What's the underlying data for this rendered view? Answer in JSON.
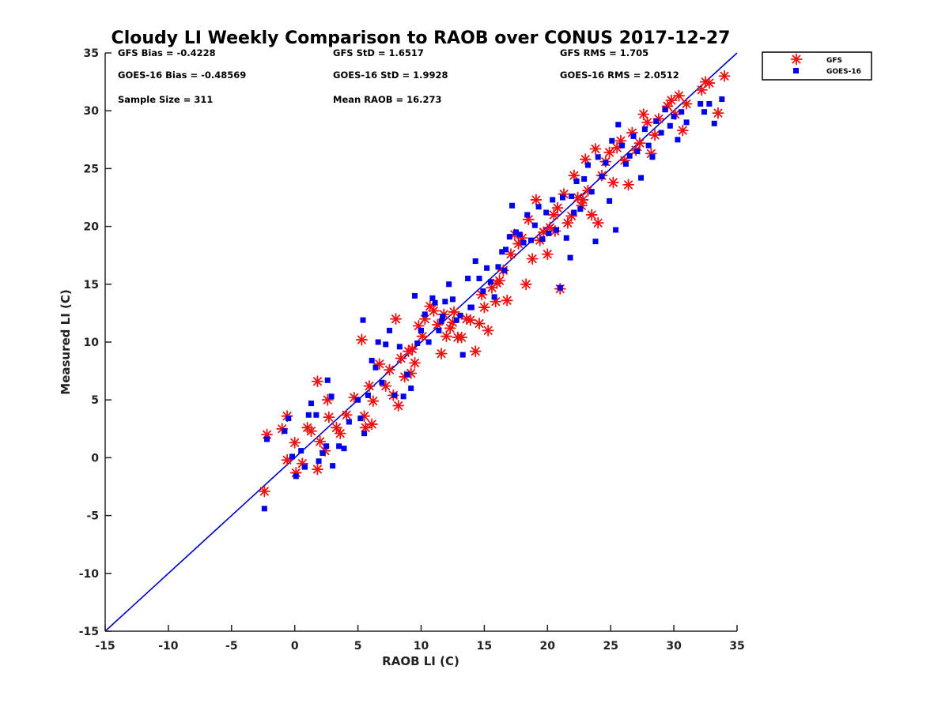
{
  "chart_data": {
    "type": "scatter",
    "title": "Cloudy LI Weekly Comparison to RAOB over CONUS 2017-12-27",
    "xlabel": "RAOB LI (C)",
    "ylabel": "Measured LI (C)",
    "xlim": [
      -15,
      35
    ],
    "ylim": [
      -15,
      35
    ],
    "xticks": [
      -15,
      -10,
      -5,
      0,
      5,
      10,
      15,
      20,
      25,
      30,
      35
    ],
    "yticks": [
      -15,
      -10,
      -5,
      0,
      5,
      10,
      15,
      20,
      25,
      30,
      35
    ],
    "grid": false,
    "legend_position": "outside-top-right",
    "one_to_one_line": {
      "from": [
        -15,
        -15
      ],
      "to": [
        35,
        35
      ],
      "color": "#0000cc"
    },
    "stats": [
      {
        "id": "gfs-bias",
        "text": "GFS Bias = -0.4228"
      },
      {
        "id": "gfs-std",
        "text": "GFS StD = 1.6517"
      },
      {
        "id": "gfs-rms",
        "text": "GFS RMS = 1.705"
      },
      {
        "id": "goes-bias",
        "text": "GOES-16 Bias = -0.48569"
      },
      {
        "id": "goes-std",
        "text": "GOES-16 StD = 1.9928"
      },
      {
        "id": "goes-rms",
        "text": "GOES-16 RMS = 2.0512"
      },
      {
        "id": "sample-size",
        "text": "Sample Size = 311"
      },
      {
        "id": "mean-raob",
        "text": "Mean RAOB = 16.273"
      }
    ],
    "series": [
      {
        "name": "GFS",
        "marker": "asterisk",
        "color": "#ee1111",
        "points": [
          [
            -2.4,
            -2.9
          ],
          [
            -2.2,
            2.0
          ],
          [
            -1.0,
            2.5
          ],
          [
            -0.6,
            3.6
          ],
          [
            -0.6,
            -0.2
          ],
          [
            0.0,
            1.3
          ],
          [
            0.1,
            -1.3
          ],
          [
            0.6,
            -0.5
          ],
          [
            1.0,
            2.6
          ],
          [
            1.3,
            2.3
          ],
          [
            1.8,
            6.6
          ],
          [
            1.8,
            -1.0
          ],
          [
            2.0,
            1.4
          ],
          [
            2.4,
            0.6
          ],
          [
            2.6,
            5.0
          ],
          [
            2.7,
            3.5
          ],
          [
            3.3,
            2.6
          ],
          [
            3.6,
            2.1
          ],
          [
            4.1,
            3.7
          ],
          [
            4.7,
            5.2
          ],
          [
            5.3,
            10.2
          ],
          [
            5.5,
            3.6
          ],
          [
            5.6,
            2.6
          ],
          [
            5.9,
            6.2
          ],
          [
            6.1,
            2.9
          ],
          [
            6.2,
            4.9
          ],
          [
            6.7,
            8.1
          ],
          [
            7.2,
            6.2
          ],
          [
            7.5,
            7.6
          ],
          [
            7.8,
            5.4
          ],
          [
            8.0,
            12.0
          ],
          [
            8.2,
            4.5
          ],
          [
            8.4,
            8.6
          ],
          [
            8.7,
            7.0
          ],
          [
            9.0,
            9.2
          ],
          [
            9.2,
            7.3
          ],
          [
            9.5,
            8.2
          ],
          [
            9.8,
            11.4
          ],
          [
            10.1,
            10.5
          ],
          [
            10.3,
            12.0
          ],
          [
            10.7,
            13.1
          ],
          [
            11.0,
            12.7
          ],
          [
            11.3,
            11.5
          ],
          [
            11.6,
            9.0
          ],
          [
            12.0,
            10.5
          ],
          [
            12.3,
            11.2
          ],
          [
            12.6,
            12.6
          ],
          [
            12.9,
            10.4
          ],
          [
            13.2,
            10.4
          ],
          [
            13.6,
            12.0
          ],
          [
            13.9,
            11.9
          ],
          [
            14.3,
            9.2
          ],
          [
            14.6,
            11.6
          ],
          [
            15.0,
            13.0
          ],
          [
            15.3,
            11.0
          ],
          [
            15.6,
            14.7
          ],
          [
            15.9,
            13.5
          ],
          [
            16.2,
            15.3
          ],
          [
            16.5,
            16.2
          ],
          [
            16.8,
            13.6
          ],
          [
            17.1,
            17.6
          ],
          [
            17.4,
            19.3
          ],
          [
            17.7,
            18.5
          ],
          [
            18.0,
            19.0
          ],
          [
            18.3,
            15.0
          ],
          [
            18.5,
            20.6
          ],
          [
            18.8,
            17.2
          ],
          [
            19.1,
            22.3
          ],
          [
            19.4,
            18.8
          ],
          [
            19.7,
            19.5
          ],
          [
            20.0,
            17.6
          ],
          [
            20.2,
            19.9
          ],
          [
            20.5,
            21.0
          ],
          [
            20.8,
            21.6
          ],
          [
            21.0,
            14.6
          ],
          [
            21.3,
            22.8
          ],
          [
            21.6,
            20.3
          ],
          [
            21.9,
            20.9
          ],
          [
            22.1,
            24.4
          ],
          [
            22.4,
            22.5
          ],
          [
            22.7,
            21.8
          ],
          [
            23.0,
            25.8
          ],
          [
            23.2,
            23.1
          ],
          [
            23.5,
            21.0
          ],
          [
            23.8,
            26.7
          ],
          [
            24.0,
            20.3
          ],
          [
            24.3,
            24.4
          ],
          [
            24.6,
            25.6
          ],
          [
            24.9,
            26.4
          ],
          [
            25.2,
            23.8
          ],
          [
            25.5,
            26.8
          ],
          [
            25.8,
            27.4
          ],
          [
            26.1,
            25.7
          ],
          [
            26.4,
            23.6
          ],
          [
            26.7,
            28.1
          ],
          [
            27.0,
            26.6
          ],
          [
            27.3,
            27.2
          ],
          [
            27.6,
            29.7
          ],
          [
            27.9,
            29.0
          ],
          [
            28.2,
            26.3
          ],
          [
            28.5,
            27.9
          ],
          [
            28.8,
            29.3
          ],
          [
            29.5,
            30.4
          ],
          [
            29.8,
            30.9
          ],
          [
            30.1,
            29.7
          ],
          [
            30.4,
            31.3
          ],
          [
            30.7,
            28.3
          ],
          [
            31.0,
            30.6
          ],
          [
            32.2,
            31.8
          ],
          [
            32.5,
            32.5
          ],
          [
            32.8,
            32.4
          ],
          [
            33.5,
            29.8
          ],
          [
            34.0,
            33.0
          ],
          [
            12.5,
            11.7
          ],
          [
            16.0,
            15.1
          ],
          [
            20.6,
            19.6
          ],
          [
            22.8,
            22.3
          ],
          [
            9.3,
            9.4
          ],
          [
            11.8,
            12.4
          ],
          [
            14.8,
            14.1
          ]
        ]
      },
      {
        "name": "GOES-16",
        "marker": "square",
        "color": "#0000ee",
        "points": [
          [
            -2.4,
            -4.4
          ],
          [
            -2.2,
            1.6
          ],
          [
            -0.8,
            2.3
          ],
          [
            -0.5,
            3.4
          ],
          [
            -0.2,
            0.1
          ],
          [
            0.1,
            -1.6
          ],
          [
            0.5,
            0.6
          ],
          [
            0.8,
            -0.8
          ],
          [
            1.1,
            3.7
          ],
          [
            1.3,
            4.7
          ],
          [
            1.7,
            3.7
          ],
          [
            1.9,
            -0.3
          ],
          [
            2.2,
            0.4
          ],
          [
            2.5,
            1.0
          ],
          [
            2.6,
            6.7
          ],
          [
            2.9,
            5.3
          ],
          [
            3.0,
            -0.7
          ],
          [
            3.5,
            1.0
          ],
          [
            3.9,
            0.8
          ],
          [
            4.3,
            3.1
          ],
          [
            5.0,
            5.0
          ],
          [
            5.2,
            3.4
          ],
          [
            5.4,
            11.9
          ],
          [
            5.5,
            2.1
          ],
          [
            5.8,
            5.4
          ],
          [
            6.1,
            8.4
          ],
          [
            6.4,
            7.8
          ],
          [
            6.6,
            10.0
          ],
          [
            6.9,
            6.5
          ],
          [
            7.2,
            9.8
          ],
          [
            7.5,
            11.0
          ],
          [
            7.9,
            5.4
          ],
          [
            8.3,
            9.6
          ],
          [
            8.6,
            5.3
          ],
          [
            8.9,
            7.2
          ],
          [
            9.2,
            6.0
          ],
          [
            9.5,
            14.0
          ],
          [
            9.7,
            9.9
          ],
          [
            10.0,
            11.0
          ],
          [
            10.3,
            12.4
          ],
          [
            10.6,
            10.0
          ],
          [
            10.9,
            13.8
          ],
          [
            11.1,
            13.4
          ],
          [
            11.4,
            11.0
          ],
          [
            11.7,
            12.2
          ],
          [
            11.9,
            13.5
          ],
          [
            12.2,
            15.0
          ],
          [
            12.5,
            13.7
          ],
          [
            12.8,
            11.9
          ],
          [
            13.1,
            12.3
          ],
          [
            13.3,
            8.9
          ],
          [
            13.7,
            15.5
          ],
          [
            14.0,
            13.0
          ],
          [
            14.3,
            17.0
          ],
          [
            14.6,
            15.5
          ],
          [
            14.9,
            14.4
          ],
          [
            15.2,
            16.4
          ],
          [
            15.5,
            15.2
          ],
          [
            15.8,
            13.9
          ],
          [
            16.1,
            16.5
          ],
          [
            16.4,
            17.8
          ],
          [
            16.7,
            18.0
          ],
          [
            17.0,
            19.1
          ],
          [
            17.2,
            21.8
          ],
          [
            17.5,
            19.5
          ],
          [
            17.8,
            19.3
          ],
          [
            18.1,
            18.6
          ],
          [
            18.4,
            21.0
          ],
          [
            18.7,
            18.8
          ],
          [
            19.0,
            20.1
          ],
          [
            19.3,
            21.7
          ],
          [
            19.6,
            18.9
          ],
          [
            19.9,
            21.2
          ],
          [
            20.1,
            19.4
          ],
          [
            20.4,
            22.3
          ],
          [
            20.7,
            19.7
          ],
          [
            21.0,
            14.7
          ],
          [
            21.2,
            22.5
          ],
          [
            21.5,
            19.0
          ],
          [
            21.8,
            17.3
          ],
          [
            22.1,
            21.2
          ],
          [
            22.3,
            23.9
          ],
          [
            22.6,
            21.5
          ],
          [
            22.9,
            24.1
          ],
          [
            23.2,
            25.3
          ],
          [
            23.5,
            23.0
          ],
          [
            23.8,
            18.7
          ],
          [
            24.0,
            26.0
          ],
          [
            24.3,
            24.3
          ],
          [
            24.6,
            25.5
          ],
          [
            24.9,
            22.2
          ],
          [
            25.1,
            27.4
          ],
          [
            25.4,
            19.7
          ],
          [
            25.6,
            28.8
          ],
          [
            25.9,
            27.0
          ],
          [
            26.2,
            25.4
          ],
          [
            26.5,
            26.1
          ],
          [
            26.8,
            27.8
          ],
          [
            27.1,
            26.5
          ],
          [
            27.4,
            24.2
          ],
          [
            27.7,
            28.4
          ],
          [
            28.0,
            27.0
          ],
          [
            28.3,
            26.0
          ],
          [
            28.6,
            29.1
          ],
          [
            29.0,
            28.1
          ],
          [
            29.3,
            30.1
          ],
          [
            29.7,
            28.7
          ],
          [
            30.0,
            29.5
          ],
          [
            30.3,
            27.5
          ],
          [
            30.6,
            29.9
          ],
          [
            31.0,
            29.0
          ],
          [
            32.1,
            30.6
          ],
          [
            32.4,
            29.9
          ],
          [
            32.8,
            30.6
          ],
          [
            33.2,
            28.9
          ],
          [
            33.8,
            31.0
          ],
          [
            13.9,
            13.0
          ],
          [
            16.6,
            16.2
          ],
          [
            21.9,
            22.6
          ],
          [
            11.6,
            11.8
          ]
        ]
      }
    ]
  }
}
